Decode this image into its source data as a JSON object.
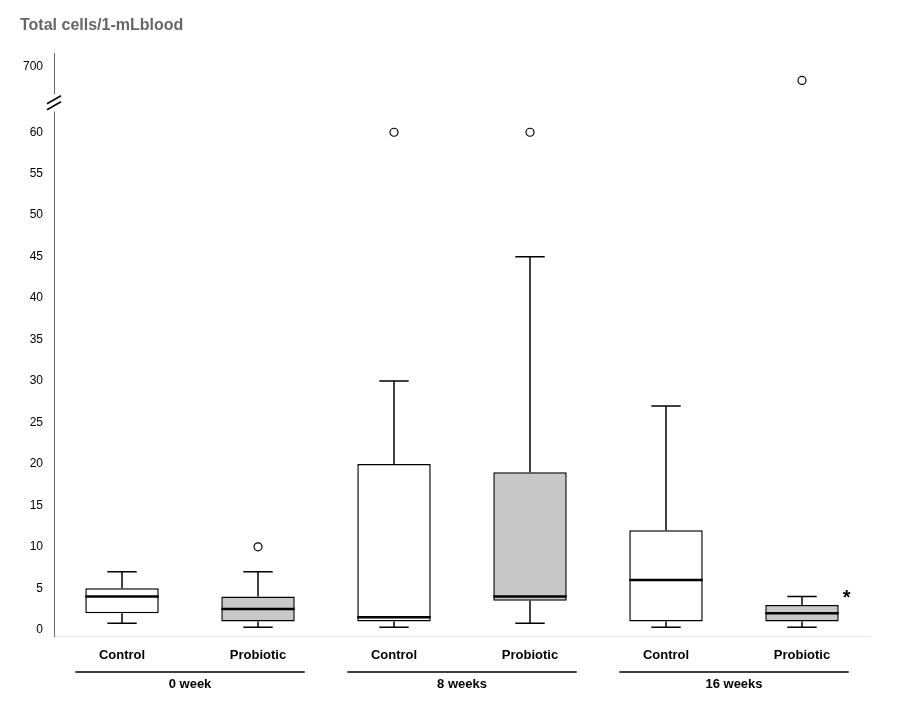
{
  "chart_data": {
    "type": "box",
    "title": "Total cells/1-mLblood",
    "categories": [
      "Control",
      "Probiotic",
      "Control",
      "Probiotic",
      "Control",
      "Probiotic"
    ],
    "groups": [
      "0 week",
      "0 week",
      "8 weeks",
      "8 weeks",
      "16 weeks",
      "16 weeks"
    ],
    "q1": [
      2.0,
      1.0,
      1.0,
      3.5,
      1.0,
      1.0
    ],
    "median": [
      4.0,
      2.5,
      1.5,
      4.0,
      6.0,
      2.0
    ],
    "q3": [
      5.0,
      4.0,
      20.0,
      19.0,
      12.0,
      3.0
    ],
    "whisker_low": [
      0.8,
      0.3,
      0.3,
      0.8,
      0.3,
      0.3
    ],
    "whisker_high": [
      7.0,
      7.0,
      30.0,
      45.0,
      27.0,
      4.0
    ],
    "outliers": [
      [],
      [
        10.0
      ],
      [
        60.0
      ],
      [
        60.0
      ],
      [],
      [
        690.0
      ]
    ],
    "colors": [
      "white",
      "#c8c8c8",
      "white",
      "#c8c8c8",
      "white",
      "#c8c8c8"
    ],
    "annotations": [
      null,
      null,
      null,
      null,
      null,
      "*"
    ],
    "ylim": [
      -0.8,
      710
    ],
    "yticks": [
      0,
      5,
      10,
      15,
      20,
      25,
      30,
      35,
      40,
      45,
      50,
      55,
      60,
      700
    ],
    "grid": false
  }
}
